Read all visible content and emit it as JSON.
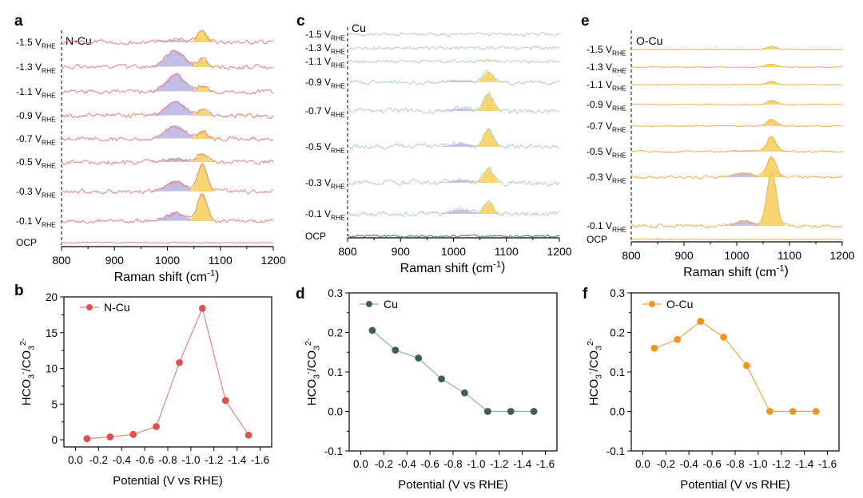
{
  "figure": {
    "panels_top": [
      {
        "label": "a",
        "title": "N-Cu",
        "color": "#e8847e",
        "raman": {
          "xlabel": "Raman shift (cm",
          "xlabel_sup": "-1",
          "xlabel_end": ")",
          "xlim": [
            800,
            1200
          ],
          "xticks": [
            "800",
            "900",
            "1000",
            "1100",
            "1200"
          ],
          "traces": [
            {
              "potential": "-1.5 V",
              "sub": "RHE",
              "bicarb_amp": 0.2,
              "carb_amp": 0.95,
              "noise": 0.25
            },
            {
              "potential": "-1.3 V",
              "sub": "RHE",
              "bicarb_amp": 1.35,
              "carb_amp": 0.65,
              "noise": 0.25
            },
            {
              "potential": "-1.1 V",
              "sub": "RHE",
              "bicarb_amp": 1.45,
              "carb_amp": 0.5,
              "noise": 0.25
            },
            {
              "potential": "-0.9 V",
              "sub": "RHE",
              "bicarb_amp": 1.2,
              "carb_amp": 0.55,
              "noise": 0.25
            },
            {
              "potential": "-0.7 V",
              "sub": "RHE",
              "bicarb_amp": 1.1,
              "carb_amp": 0.7,
              "noise": 0.25
            },
            {
              "potential": "-0.5 V",
              "sub": "RHE",
              "bicarb_amp": 0.3,
              "carb_amp": 0.7,
              "noise": 0.25
            },
            {
              "potential": "-0.3 V",
              "sub": "RHE",
              "bicarb_amp": 0.9,
              "carb_amp": 2.3,
              "noise": 0.25
            },
            {
              "potential": "-0.1 V",
              "sub": "RHE",
              "bicarb_amp": 0.7,
              "carb_amp": 2.3,
              "noise": 0.25
            },
            {
              "potential": "OCP",
              "sub": "",
              "bicarb_amp": 0,
              "carb_amp": 0,
              "noise": 0.06
            }
          ]
        }
      },
      {
        "label": "c",
        "title": "Cu",
        "color": "#b5cfcb",
        "raman": {
          "xlabel": "Raman shift (cm",
          "xlabel_sup": "-1",
          "xlabel_end": ")",
          "xlim": [
            800,
            1200
          ],
          "xticks": [
            "800",
            "900",
            "1000",
            "1100",
            "1200"
          ],
          "traces": [
            {
              "potential": "-1.5 V",
              "sub": "RHE",
              "bicarb_amp": 0,
              "carb_amp": 0,
              "noise": 0.35
            },
            {
              "potential": "-1.3 V",
              "sub": "RHE",
              "bicarb_amp": 0,
              "carb_amp": 0,
              "noise": 0.35
            },
            {
              "potential": "-1.1 V",
              "sub": "RHE",
              "bicarb_amp": 0,
              "carb_amp": 0.15,
              "noise": 0.35
            },
            {
              "potential": "-0.9 V",
              "sub": "RHE",
              "bicarb_amp": 0.25,
              "carb_amp": 1.55,
              "noise": 0.45
            },
            {
              "potential": "-0.7 V",
              "sub": "RHE",
              "bicarb_amp": 0.35,
              "carb_amp": 2.6,
              "noise": 0.55
            },
            {
              "potential": "-0.5 V",
              "sub": "RHE",
              "bicarb_amp": 0.5,
              "carb_amp": 2.75,
              "noise": 0.55
            },
            {
              "potential": "-0.3 V",
              "sub": "RHE",
              "bicarb_amp": 0.45,
              "carb_amp": 2.2,
              "noise": 0.55
            },
            {
              "potential": "-0.1 V",
              "sub": "RHE",
              "bicarb_amp": 0.6,
              "carb_amp": 1.8,
              "noise": 0.55
            },
            {
              "potential": "OCP",
              "sub": "",
              "bicarb_amp": 0,
              "carb_amp": 0,
              "noise": 0.25
            }
          ]
        }
      },
      {
        "label": "e",
        "title": "O-Cu",
        "color": "#f2ae55",
        "raman": {
          "xlabel": "Raman shift (cm",
          "xlabel_sup": "-1",
          "xlabel_end": ")",
          "xlim": [
            800,
            1200
          ],
          "xticks": [
            "800",
            "900",
            "1000",
            "1100",
            "1200"
          ],
          "traces": [
            {
              "potential": "-1.5 V",
              "sub": "RHE",
              "bicarb_amp": 0,
              "carb_amp": 0.25,
              "noise": 0.06
            },
            {
              "potential": "-1.3 V",
              "sub": "RHE",
              "bicarb_amp": 0,
              "carb_amp": 0.28,
              "noise": 0.06
            },
            {
              "potential": "-1.1 V",
              "sub": "RHE",
              "bicarb_amp": 0,
              "carb_amp": 0.28,
              "noise": 0.06
            },
            {
              "potential": "-0.9 V",
              "sub": "RHE",
              "bicarb_amp": 0,
              "carb_amp": 0.35,
              "noise": 0.06
            },
            {
              "potential": "-0.7 V",
              "sub": "RHE",
              "bicarb_amp": 0,
              "carb_amp": 0.6,
              "noise": 0.08
            },
            {
              "potential": "-0.5 V",
              "sub": "RHE",
              "bicarb_amp": 0.1,
              "carb_amp": 1.3,
              "noise": 0.12
            },
            {
              "potential": "-0.3 V",
              "sub": "RHE",
              "bicarb_amp": 0.35,
              "carb_amp": 1.8,
              "noise": 0.18
            },
            {
              "potential": "-0.1 V",
              "sub": "RHE",
              "bicarb_amp": 0.45,
              "carb_amp": 4.8,
              "noise": 0.22
            },
            {
              "potential": "OCP",
              "sub": "",
              "bicarb_amp": 0,
              "carb_amp": 0,
              "noise": 0.05
            }
          ]
        }
      }
    ],
    "bicarb_color": "#b8b3e3",
    "carb_color": "#f7d670",
    "ylabel_ratio": {
      "a": "HCO",
      "b": "3",
      "c": "-",
      "d": "/CO",
      "e": "3",
      "f": "2-"
    }
  },
  "chart_data": [
    {
      "type": "line",
      "panel": "b",
      "legend": "N-Cu",
      "color": "#e8847e",
      "marker_color": "#d9534f",
      "xlabel": "Potential (V vs RHE)",
      "ylabel": "HCO3-/CO32-",
      "x": [
        -0.1,
        -0.3,
        -0.5,
        -0.7,
        -0.9,
        -1.1,
        -1.3,
        -1.5
      ],
      "y": [
        0.15,
        0.4,
        0.75,
        1.85,
        10.8,
        18.4,
        5.5,
        0.65
      ],
      "xlim": [
        0.1,
        -1.7
      ],
      "ylim": [
        -1,
        20
      ],
      "xticks": [
        "0.0",
        "-0.2",
        "-0.4",
        "-0.6",
        "-0.8",
        "-1.0",
        "-1.2",
        "-1.4",
        "-1.6"
      ],
      "yticks": [
        "0",
        "5",
        "10",
        "15",
        "20"
      ]
    },
    {
      "type": "line",
      "panel": "d",
      "legend": "Cu",
      "color": "#8fb1ab",
      "marker_color": "#3e5e58",
      "xlabel": "Potential (V vs RHE)",
      "ylabel": "HCO3-/CO32-",
      "x": [
        -0.1,
        -0.3,
        -0.5,
        -0.7,
        -0.9,
        -1.1,
        -1.3,
        -1.5
      ],
      "y": [
        0.205,
        0.155,
        0.135,
        0.082,
        0.047,
        0.0,
        0.0,
        0.0
      ],
      "xlim": [
        0.1,
        -1.7
      ],
      "ylim": [
        -0.1,
        0.3
      ],
      "xticks": [
        "0.0",
        "-0.2",
        "-0.4",
        "-0.6",
        "-0.8",
        "-1.0",
        "-1.2",
        "-1.4",
        "-1.6"
      ],
      "yticks": [
        "-0.1",
        "0.0",
        "0.1",
        "0.2",
        "0.3"
      ]
    },
    {
      "type": "line",
      "panel": "f",
      "legend": "O-Cu",
      "color": "#f2a541",
      "marker_color": "#f0961e",
      "xlabel": "Potential (V vs RHE)",
      "ylabel": "HCO3-/CO32-",
      "x": [
        -0.1,
        -0.3,
        -0.5,
        -0.7,
        -0.9,
        -1.1,
        -1.3,
        -1.5
      ],
      "y": [
        0.16,
        0.182,
        0.228,
        0.188,
        0.116,
        0.0,
        0.0,
        0.0
      ],
      "xlim": [
        0.1,
        -1.7
      ],
      "ylim": [
        -0.1,
        0.3
      ],
      "xticks": [
        "0.0",
        "-0.2",
        "-0.4",
        "-0.6",
        "-0.8",
        "-1.0",
        "-1.2",
        "-1.4",
        "-1.6"
      ],
      "yticks": [
        "-0.1",
        "0.0",
        "0.1",
        "0.2",
        "0.3"
      ]
    }
  ]
}
